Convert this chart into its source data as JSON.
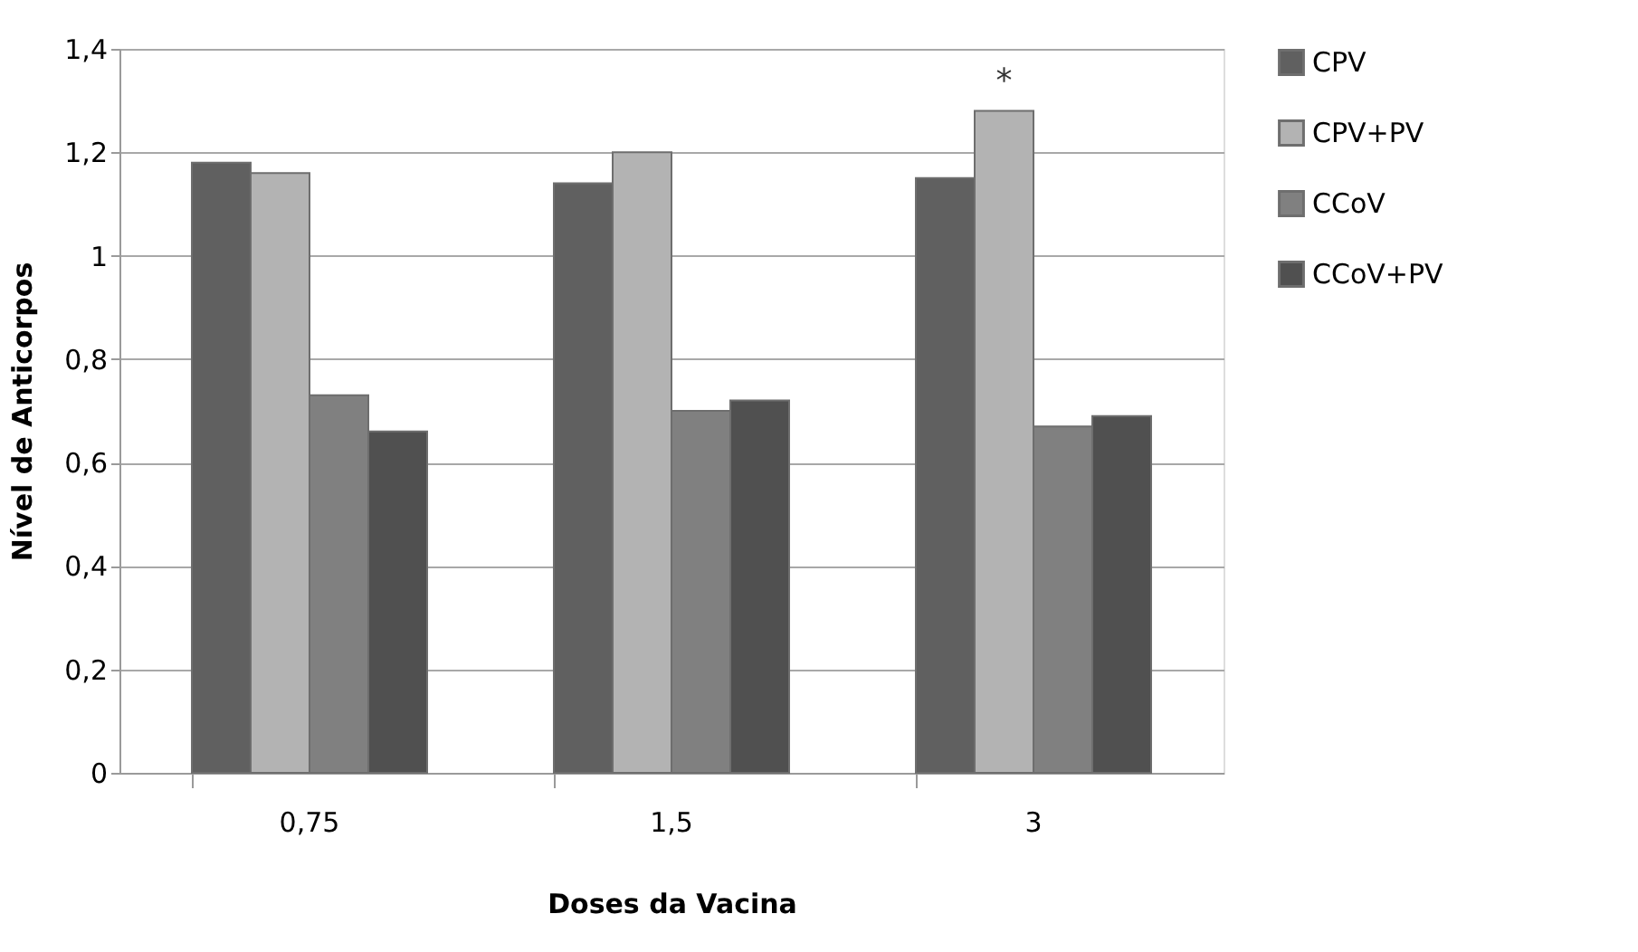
{
  "chart_data": {
    "type": "bar",
    "xlabel": "Doses da Vacina",
    "ylabel": "Nível de Anticorpos",
    "categories": [
      "0,75",
      "1,5",
      "3"
    ],
    "series": [
      {
        "name": "CPV",
        "color": "#606060",
        "values": [
          1.18,
          1.14,
          1.15
        ]
      },
      {
        "name": "CPV+PV",
        "color": "#b3b3b3",
        "values": [
          1.16,
          1.2,
          1.28
        ]
      },
      {
        "name": "CCoV",
        "color": "#808080",
        "values": [
          0.73,
          0.7,
          0.67
        ]
      },
      {
        "name": "CCoV+PV",
        "color": "#505050",
        "values": [
          0.66,
          0.72,
          0.69
        ]
      }
    ],
    "ylim": [
      0,
      1.4
    ],
    "yticks": [
      0,
      {
        "value": 0.2,
        "label": "0,2"
      },
      {
        "value": 0.4,
        "label": "0,4"
      },
      {
        "value": 0.6,
        "label": "0,6"
      },
      {
        "value": 0.8,
        "label": "0,8"
      },
      1,
      {
        "value": 1.2,
        "label": "1,2"
      },
      {
        "value": 1.4,
        "label": "1,4"
      }
    ],
    "annotations": [
      {
        "text": "*",
        "x": "3",
        "y": 1.28
      }
    ],
    "grid": "y",
    "legend": "right"
  }
}
